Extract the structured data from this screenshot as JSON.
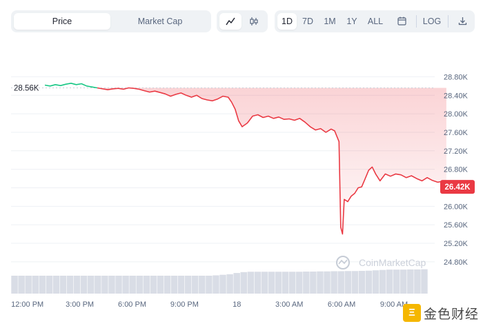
{
  "toolbar": {
    "type_tabs": [
      "Price",
      "Market Cap"
    ],
    "active_type": "Price",
    "view_icons": [
      "line-chart-icon",
      "candlestick-icon"
    ],
    "range_tabs": [
      "1D",
      "7D",
      "1M",
      "1Y",
      "ALL"
    ],
    "active_range": "1D",
    "calendar_icon": "calendar-icon",
    "log_label": "LOG",
    "download_icon": "download-icon"
  },
  "colors": {
    "up": "#16c784",
    "down": "#ea3943",
    "volume": "#d9dde6",
    "grid": "#eef0f4",
    "axis_text": "#58667e"
  },
  "chart_data": {
    "type": "line",
    "title": "",
    "xlabel": "",
    "ylabel": "",
    "ylim": [
      24.5,
      29.0
    ],
    "y_ticks": [
      "28.80K",
      "28.40K",
      "28.00K",
      "27.60K",
      "27.20K",
      "26.80K",
      "26.40K",
      "26.00K",
      "25.60K",
      "25.20K",
      "24.80K"
    ],
    "y_tick_values": [
      28.8,
      28.4,
      28.0,
      27.6,
      27.2,
      26.8,
      26.4,
      26.0,
      25.6,
      25.2,
      24.8
    ],
    "x_ticks": [
      "12:00 PM",
      "3:00 PM",
      "6:00 PM",
      "9:00 PM",
      "18",
      "3:00 AM",
      "6:00 AM",
      "9:00 AM"
    ],
    "x_tick_values": [
      -1.0,
      2.0,
      5.0,
      8.0,
      11.0,
      14.0,
      17.0,
      20.0
    ],
    "x_unit": "hours",
    "open_value": 28.56,
    "open_label": "28.56K",
    "last_value": 26.42,
    "last_label": "26.42K",
    "watermark": "CoinMarketCap",
    "series": [
      {
        "x": [
          0.0,
          0.3,
          0.6,
          0.9,
          1.2,
          1.5,
          1.8,
          2.1,
          2.4,
          2.7,
          3.0,
          3.3,
          3.6,
          3.9,
          4.2,
          4.5,
          4.8,
          5.1,
          5.4,
          5.7,
          6.0,
          6.3,
          6.6,
          6.9,
          7.2,
          7.5,
          7.8,
          8.1,
          8.4,
          8.7,
          9.0,
          9.3,
          9.6,
          9.9,
          10.2,
          10.5,
          10.7,
          10.9,
          11.1,
          11.3,
          11.6,
          11.9,
          12.2,
          12.5,
          12.8,
          13.1,
          13.4,
          13.7,
          14.0,
          14.3,
          14.6,
          14.9,
          15.2,
          15.5,
          15.8,
          16.1,
          16.4,
          16.6,
          16.85,
          16.95,
          17.05,
          17.15,
          17.35,
          17.55,
          17.75,
          17.95,
          18.15,
          18.35,
          18.55,
          18.75,
          18.95,
          19.2,
          19.5,
          19.8,
          20.1,
          20.4,
          20.7,
          21.0,
          21.3,
          21.6,
          21.9,
          22.2,
          22.5,
          22.75,
          23.0
        ],
        "values": [
          28.62,
          28.6,
          28.63,
          28.61,
          28.64,
          28.66,
          28.63,
          28.65,
          28.6,
          28.58,
          28.56,
          28.54,
          28.52,
          28.54,
          28.55,
          28.53,
          28.56,
          28.55,
          28.53,
          28.5,
          28.47,
          28.49,
          28.46,
          28.43,
          28.38,
          28.42,
          28.45,
          28.4,
          28.36,
          28.4,
          28.33,
          28.3,
          28.28,
          28.32,
          28.38,
          28.36,
          28.25,
          28.1,
          27.85,
          27.72,
          27.8,
          27.95,
          27.98,
          27.92,
          27.95,
          27.9,
          27.93,
          27.88,
          27.89,
          27.86,
          27.9,
          27.82,
          27.72,
          27.65,
          27.68,
          27.6,
          27.67,
          27.63,
          27.4,
          25.55,
          25.4,
          26.15,
          26.1,
          26.22,
          26.28,
          26.4,
          26.42,
          26.6,
          26.78,
          26.85,
          26.7,
          26.55,
          26.7,
          26.65,
          26.7,
          26.68,
          26.62,
          26.66,
          26.6,
          26.55,
          26.62,
          26.56,
          26.52,
          26.54,
          26.42
        ]
      }
    ],
    "volume": [
      1.0,
      1.0,
      1.0,
      1.0,
      1.0,
      1.0,
      1.0,
      1.0,
      1.0,
      1.0,
      1.0,
      1.0,
      1.0,
      1.0,
      1.0,
      1.0,
      1.0,
      1.0,
      1.0,
      1.0,
      1.0,
      1.0,
      1.0,
      1.0,
      1.0,
      1.0,
      1.0,
      1.0,
      1.0,
      1.02,
      1.05,
      1.08,
      1.15,
      1.2,
      1.22,
      1.22,
      1.22,
      1.22,
      1.22,
      1.22,
      1.22,
      1.22,
      1.23,
      1.23,
      1.24,
      1.24,
      1.25,
      1.25,
      1.26,
      1.26,
      1.27,
      1.28,
      1.3,
      1.32,
      1.34,
      1.34,
      1.34,
      1.35,
      1.35,
      1.36
    ]
  }
}
